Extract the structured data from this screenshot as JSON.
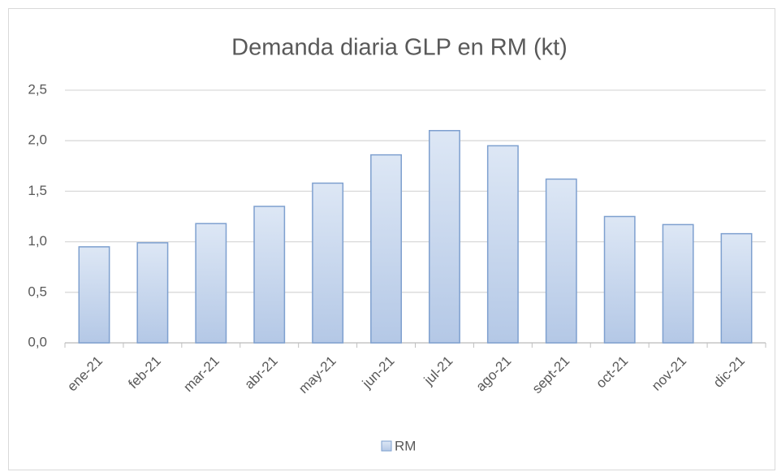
{
  "chart_data": {
    "type": "bar",
    "title": "Demanda diaria GLP en RM (kt)",
    "categories": [
      "ene-21",
      "feb-21",
      "mar-21",
      "abr-21",
      "may-21",
      "jun-21",
      "jul-21",
      "ago-21",
      "sept-21",
      "oct-21",
      "nov-21",
      "dic-21"
    ],
    "series": [
      {
        "name": "RM",
        "color": "#b4c8e6",
        "values": [
          0.95,
          0.99,
          1.18,
          1.35,
          1.58,
          1.86,
          2.1,
          1.95,
          1.62,
          1.25,
          1.17,
          1.08
        ]
      }
    ],
    "ylim": [
      0,
      2.5
    ],
    "yticks": [
      {
        "value": 0,
        "label": "0,0"
      },
      {
        "value": 0.5,
        "label": "0,5"
      },
      {
        "value": 1,
        "label": "1,0"
      },
      {
        "value": 1.5,
        "label": "1,5"
      },
      {
        "value": 2,
        "label": "2,0"
      },
      {
        "value": 2.5,
        "label": "2,5"
      }
    ],
    "grid": true,
    "legend": "bottom"
  }
}
